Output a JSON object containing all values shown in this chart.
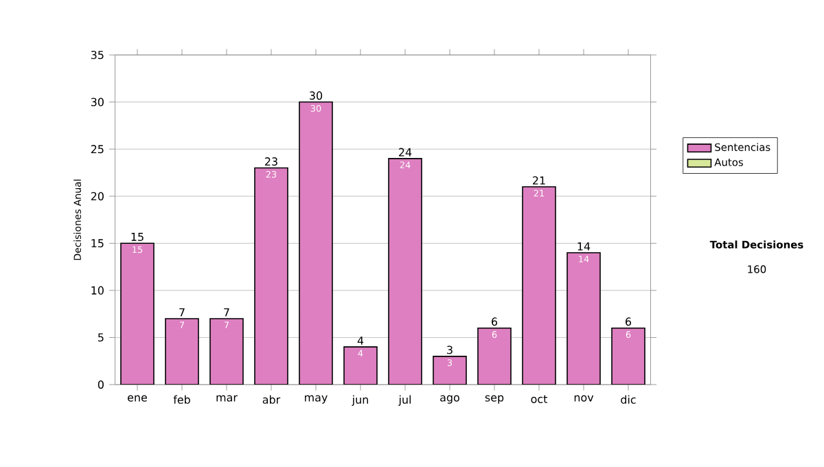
{
  "chart_data": {
    "type": "bar",
    "stacked": true,
    "ylabel": "Decisiones Anual",
    "categories": [
      "ene",
      "feb",
      "mar",
      "abr",
      "may",
      "jun",
      "jul",
      "ago",
      "sep",
      "oct",
      "nov",
      "dic"
    ],
    "series": [
      {
        "name": "Sentencias",
        "color": "#dd7fc0",
        "values": [
          15,
          7,
          7,
          23,
          30,
          4,
          24,
          3,
          6,
          21,
          14,
          6
        ],
        "value_labels": [
          "15",
          "7",
          "7",
          "23",
          "30",
          "4",
          "24",
          "3",
          "6",
          "21",
          "14",
          "6"
        ]
      },
      {
        "name": "Autos",
        "color": "#d8e89a",
        "values": [
          0,
          0,
          0,
          0,
          0,
          0,
          0,
          0,
          0,
          0,
          0,
          0
        ]
      }
    ],
    "totals": [
      "15",
      "7",
      "7",
      "23",
      "30",
      "4",
      "24",
      "3",
      "6",
      "21",
      "14",
      "6"
    ],
    "ylim": [
      0,
      35
    ],
    "yticks": [
      0,
      5,
      10,
      15,
      20,
      25,
      30,
      35
    ],
    "grid": "y",
    "legend": "right",
    "annotations": [
      "Total Decisiones",
      "160"
    ]
  }
}
